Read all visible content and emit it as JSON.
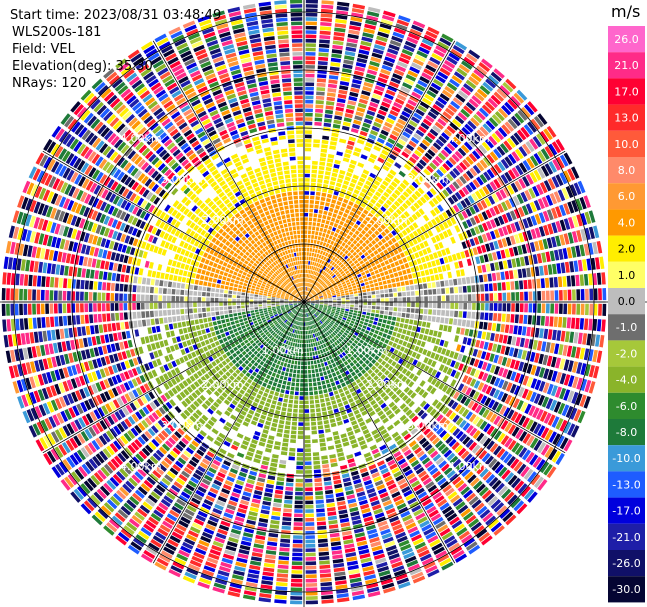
{
  "header": {
    "start_time": "Start time: 2023/08/31 03:48:49",
    "instrument": "WLS200s-181",
    "field": "Field: VEL",
    "elevation": "Elevation(deg): 35.30",
    "nrays": "NRays: 120"
  },
  "chart_data": {
    "type": "heatmap",
    "title": "",
    "projection": "polar-ppi",
    "n_rays": 120,
    "elevation_deg": 35.3,
    "field": "VEL",
    "units": "m/s",
    "range_rings": [
      {
        "radius_km": 1,
        "label": "1.00km"
      },
      {
        "radius_km": 2,
        "label": "2.00km"
      },
      {
        "radius_km": 3,
        "label": "3.00km"
      },
      {
        "radius_km": 4,
        "label": "4.00km"
      },
      {
        "radius_km": 5,
        "label": "5.00km"
      }
    ],
    "max_range_km": 5.2,
    "spokes_deg_step": 30,
    "grid": true,
    "colorbar": {
      "unit_label": "m/s",
      "ticks": [
        "26.0",
        "21.0",
        "17.0",
        "13.0",
        "10.0",
        "8.0",
        "6.0",
        "4.0",
        "2.0",
        "1.0",
        "0.0",
        "-1.0",
        "-2.0",
        "-4.0",
        "-6.0",
        "-8.0",
        "-10.0",
        "-13.0",
        "-17.0",
        "-21.0",
        "-26.0",
        "-30.0"
      ],
      "colors": [
        "#ff66cc",
        "#ff2b88",
        "#ff0033",
        "#ff2a2a",
        "#ff5a3a",
        "#ff8a6a",
        "#ff9933",
        "#ff9900",
        "#ffee00",
        "#ffff66",
        "#bdbdbd",
        "#6e6e6e",
        "#a6c83a",
        "#8ab42a",
        "#2e8b2e",
        "#1e7a3a",
        "#3a9ad9",
        "#1e5cff",
        "#0000dd",
        "#1e1ea8",
        "#101068",
        "#050533"
      ]
    },
    "regions": [
      {
        "range_km": [
          0,
          3.0
        ],
        "azimuth_deg": [
          272,
          88
        ],
        "velocity_ms": [
          2.0,
          6.0
        ],
        "description": "positive velocities north half"
      },
      {
        "range_km": [
          0,
          3.0
        ],
        "azimuth_deg": [
          92,
          268
        ],
        "velocity_ms": [
          -8.0,
          -2.0
        ],
        "description": "negative velocities south half"
      },
      {
        "range_km": [
          3.0,
          5.2
        ],
        "azimuth_deg": [
          0,
          360
        ],
        "velocity_ms": [
          -30.0,
          26.0
        ],
        "description": "noise beyond 3 km"
      }
    ]
  }
}
